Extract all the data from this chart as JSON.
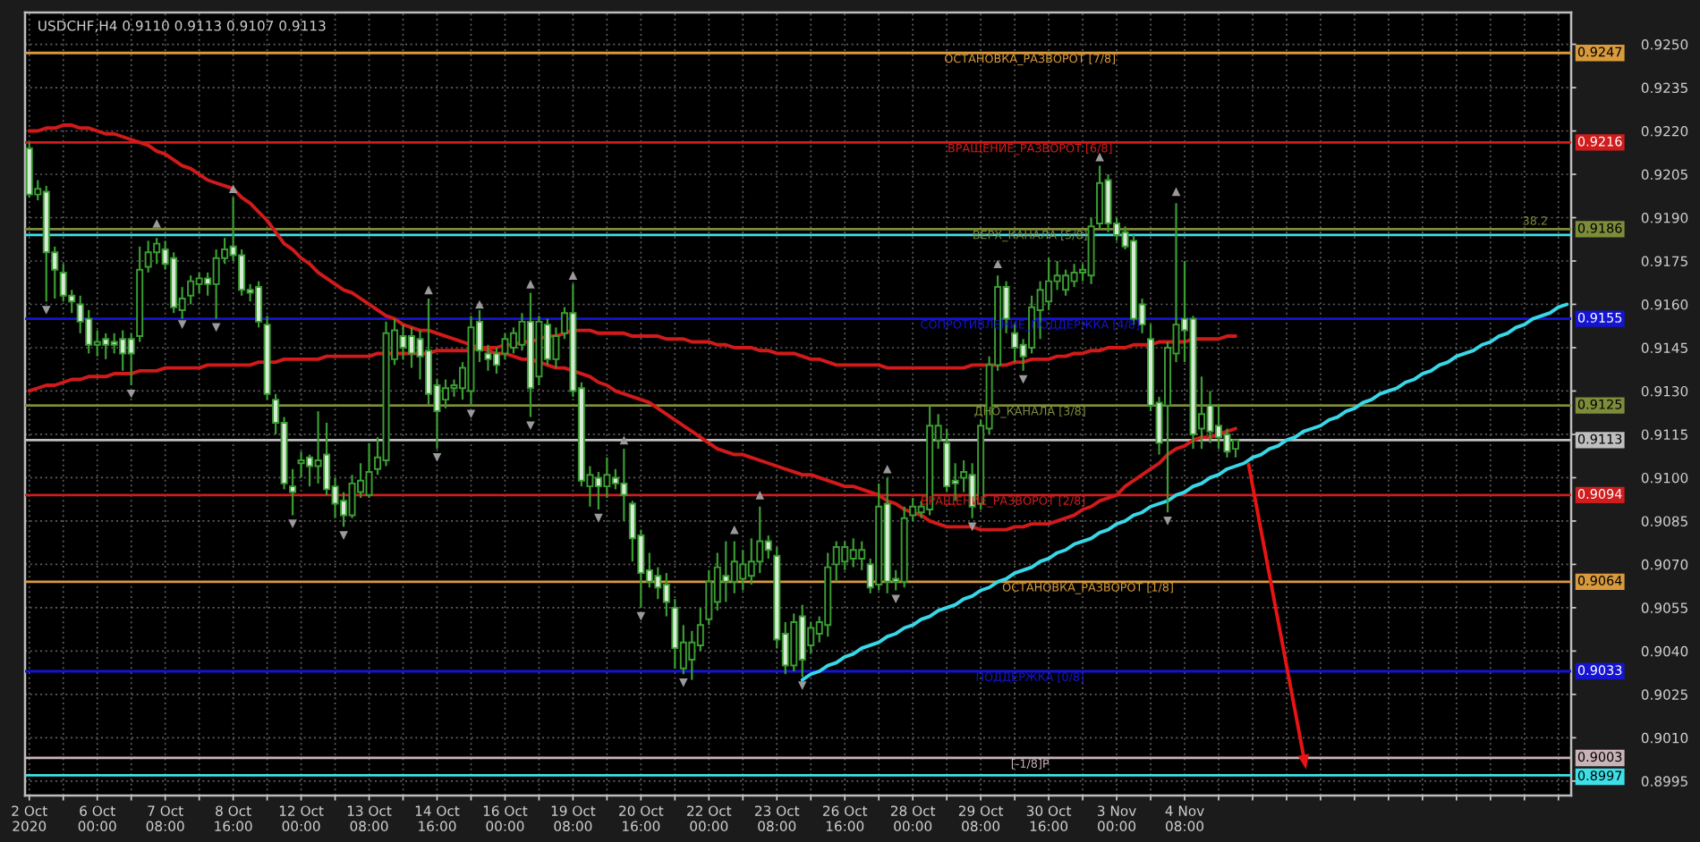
{
  "chart_data": {
    "type": "candlestick",
    "title": "USDCHF,H4 0.9110 0.9113 0.9107 0.9113",
    "color": "#3a9c32",
    "categories": [
      "2 Oct 2020",
      null,
      null,
      null,
      null,
      null,
      null,
      null,
      "6 Oct 00:00",
      null,
      null,
      null,
      null,
      null,
      null,
      null,
      "7 Oct 08:00",
      null,
      null,
      null,
      null,
      null,
      null,
      null,
      "8 Oct 16:00",
      null,
      null,
      null,
      null,
      null,
      null,
      null,
      "12 Oct 00:00",
      null,
      null,
      null,
      null,
      null,
      null,
      null,
      "13 Oct 08:00",
      null,
      null,
      null,
      null,
      null,
      null,
      null,
      "14 Oct 16:00",
      null,
      null,
      null,
      null,
      null,
      null,
      null,
      "16 Oct 00:00",
      null,
      null,
      null,
      null,
      null,
      null,
      null,
      "19 Oct 08:00",
      null,
      null,
      null,
      null,
      null,
      null,
      null,
      "20 Oct 16:00",
      null,
      null,
      null,
      null,
      null,
      null,
      null,
      "22 Oct 00:00",
      null,
      null,
      null,
      null,
      null,
      null,
      null,
      "23 Oct 08:00",
      null,
      null,
      null,
      null,
      null,
      null,
      null,
      "26 Oct 16:00",
      null,
      null,
      null,
      null,
      null,
      null,
      null,
      "28 Oct 00:00",
      null,
      null,
      null,
      null,
      null,
      null,
      null,
      "29 Oct 08:00",
      null,
      null,
      null,
      null,
      null,
      null,
      null,
      "30 Oct 16:00",
      null,
      null,
      null,
      null,
      null,
      null,
      null,
      "3 Nov 00:00",
      null,
      null,
      null,
      null,
      null,
      null,
      null,
      "4 Nov 08:00",
      null,
      null,
      null,
      null,
      null,
      null,
      null,
      null,
      null,
      null,
      null,
      null,
      null,
      null,
      null,
      null,
      null,
      null,
      null,
      null,
      null,
      null,
      null,
      null,
      null,
      null,
      null,
      null,
      null,
      null,
      null,
      null,
      null,
      null,
      null,
      null,
      null,
      null,
      null,
      null,
      null,
      null,
      null,
      null,
      null
    ],
    "ohlc": [
      [
        0.9214,
        0.9216,
        0.9197,
        0.9198
      ],
      [
        0.9198,
        0.9203,
        0.9196,
        0.92
      ],
      [
        0.9199,
        0.9201,
        0.9161,
        0.9178
      ],
      [
        0.9178,
        0.918,
        0.9162,
        0.9172
      ],
      [
        0.9171,
        0.9174,
        0.9161,
        0.9163
      ],
      [
        0.9163,
        0.9165,
        0.9157,
        0.9161
      ],
      [
        0.916,
        0.9163,
        0.915,
        0.9154
      ],
      [
        0.9155,
        0.9158,
        0.9143,
        0.9146
      ],
      [
        0.9146,
        0.9151,
        0.9142,
        0.9147
      ],
      [
        0.9148,
        0.915,
        0.9141,
        0.9146
      ],
      [
        0.9147,
        0.915,
        0.9143,
        0.9146
      ],
      [
        0.9148,
        0.9151,
        0.9137,
        0.9143
      ],
      [
        0.9148,
        0.915,
        0.9132,
        0.9143
      ],
      [
        0.9149,
        0.918,
        0.9147,
        0.9172
      ],
      [
        0.9173,
        0.9182,
        0.9171,
        0.9178
      ],
      [
        0.9178,
        0.9183,
        0.9174,
        0.9181
      ],
      [
        0.9179,
        0.9182,
        0.9172,
        0.9174
      ],
      [
        0.9176,
        0.9178,
        0.9157,
        0.9159
      ],
      [
        0.9158,
        0.9166,
        0.9155,
        0.9162
      ],
      [
        0.9163,
        0.917,
        0.916,
        0.9168
      ],
      [
        0.9167,
        0.9171,
        0.9164,
        0.9169
      ],
      [
        0.9169,
        0.9171,
        0.9163,
        0.9167
      ],
      [
        0.9167,
        0.9179,
        0.9155,
        0.9176
      ],
      [
        0.9176,
        0.9183,
        0.9174,
        0.9179
      ],
      [
        0.918,
        0.9197,
        0.9175,
        0.9177
      ],
      [
        0.9177,
        0.9179,
        0.9163,
        0.9165
      ],
      [
        0.9165,
        0.9167,
        0.9161,
        0.9164
      ],
      [
        0.9166,
        0.9168,
        0.9152,
        0.9154
      ],
      [
        0.9153,
        0.9156,
        0.9127,
        0.9129
      ],
      [
        0.9127,
        0.9129,
        0.9115,
        0.9119
      ],
      [
        0.9119,
        0.9121,
        0.9096,
        0.9098
      ],
      [
        0.9097,
        0.9103,
        0.9087,
        0.9095
      ],
      [
        0.9105,
        0.9109,
        0.91,
        0.9106
      ],
      [
        0.9107,
        0.9108,
        0.9097,
        0.9104
      ],
      [
        0.9104,
        0.9123,
        0.9098,
        0.9106
      ],
      [
        0.9108,
        0.9119,
        0.9094,
        0.9096
      ],
      [
        0.9097,
        0.91,
        0.9086,
        0.9091
      ],
      [
        0.9092,
        0.9095,
        0.9083,
        0.9087
      ],
      [
        0.9087,
        0.9101,
        0.9086,
        0.9098
      ],
      [
        0.9095,
        0.9105,
        0.9093,
        0.9099
      ],
      [
        0.9094,
        0.9112,
        0.9093,
        0.9102
      ],
      [
        0.9103,
        0.9114,
        0.9101,
        0.9107
      ],
      [
        0.9106,
        0.9154,
        0.9104,
        0.915
      ],
      [
        0.9141,
        0.9155,
        0.9139,
        0.9151
      ],
      [
        0.9149,
        0.9153,
        0.9141,
        0.9145
      ],
      [
        0.9149,
        0.9152,
        0.9138,
        0.9143
      ],
      [
        0.9148,
        0.9151,
        0.9134,
        0.9142
      ],
      [
        0.9144,
        0.9162,
        0.9125,
        0.9129
      ],
      [
        0.9132,
        0.9134,
        0.911,
        0.9123
      ],
      [
        0.9127,
        0.9134,
        0.9124,
        0.9131
      ],
      [
        0.9131,
        0.9134,
        0.9128,
        0.9132
      ],
      [
        0.9131,
        0.914,
        0.9127,
        0.9138
      ],
      [
        0.913,
        0.9156,
        0.9125,
        0.9152
      ],
      [
        0.9154,
        0.9158,
        0.914,
        0.9144
      ],
      [
        0.9143,
        0.9146,
        0.9137,
        0.9141
      ],
      [
        0.9143,
        0.9145,
        0.9136,
        0.9139
      ],
      [
        0.9143,
        0.915,
        0.9141,
        0.9148
      ],
      [
        0.9145,
        0.9152,
        0.9143,
        0.915
      ],
      [
        0.9146,
        0.9157,
        0.9144,
        0.9154
      ],
      [
        0.9154,
        0.9164,
        0.9121,
        0.9131
      ],
      [
        0.9135,
        0.9156,
        0.9132,
        0.9154
      ],
      [
        0.9153,
        0.9155,
        0.9139,
        0.9141
      ],
      [
        0.9141,
        0.9152,
        0.9138,
        0.9149
      ],
      [
        0.915,
        0.9159,
        0.9148,
        0.9157
      ],
      [
        0.9157,
        0.9167,
        0.9128,
        0.913
      ],
      [
        0.9131,
        0.9133,
        0.9097,
        0.9099
      ],
      [
        0.9097,
        0.9104,
        0.909,
        0.9101
      ],
      [
        0.91,
        0.9102,
        0.9089,
        0.9097
      ],
      [
        0.9097,
        0.9107,
        0.9093,
        0.9101
      ],
      [
        0.91,
        0.9103,
        0.9096,
        0.9098
      ],
      [
        0.9098,
        0.911,
        0.9085,
        0.9094
      ],
      [
        0.9091,
        0.9092,
        0.9071,
        0.9079
      ],
      [
        0.908,
        0.9082,
        0.9055,
        0.9067
      ],
      [
        0.9068,
        0.9074,
        0.9062,
        0.9064
      ],
      [
        0.9066,
        0.9069,
        0.9058,
        0.9062
      ],
      [
        0.9063,
        0.9067,
        0.9052,
        0.9057
      ],
      [
        0.9055,
        0.9058,
        0.9034,
        0.9041
      ],
      [
        0.9034,
        0.9049,
        0.9032,
        0.9043
      ],
      [
        0.9037,
        0.9047,
        0.903,
        0.9043
      ],
      [
        0.9042,
        0.9055,
        0.904,
        0.9049
      ],
      [
        0.9051,
        0.9068,
        0.9049,
        0.9064
      ],
      [
        0.9057,
        0.9074,
        0.9054,
        0.9069
      ],
      [
        0.9066,
        0.9078,
        0.9057,
        0.9064
      ],
      [
        0.9064,
        0.9078,
        0.906,
        0.9071
      ],
      [
        0.9065,
        0.9075,
        0.9061,
        0.907
      ],
      [
        0.9066,
        0.9079,
        0.9063,
        0.9071
      ],
      [
        0.9071,
        0.909,
        0.9067,
        0.9078
      ],
      [
        0.9078,
        0.908,
        0.9072,
        0.9075
      ],
      [
        0.9073,
        0.9076,
        0.9041,
        0.9044
      ],
      [
        0.9046,
        0.905,
        0.9032,
        0.9035
      ],
      [
        0.9035,
        0.9053,
        0.9033,
        0.905
      ],
      [
        0.9052,
        0.9056,
        0.9031,
        0.9037
      ],
      [
        0.9042,
        0.905,
        0.9039,
        0.9048
      ],
      [
        0.9046,
        0.9052,
        0.9043,
        0.905
      ],
      [
        0.9049,
        0.9074,
        0.9045,
        0.9069
      ],
      [
        0.907,
        0.9078,
        0.9064,
        0.9076
      ],
      [
        0.9071,
        0.9078,
        0.9068,
        0.9076
      ],
      [
        0.9072,
        0.9079,
        0.9069,
        0.9075
      ],
      [
        0.9072,
        0.9078,
        0.9068,
        0.9075
      ],
      [
        0.907,
        0.9072,
        0.906,
        0.9062
      ],
      [
        0.9063,
        0.9098,
        0.9061,
        0.909
      ],
      [
        0.9091,
        0.91,
        0.906,
        0.9064
      ],
      [
        0.9065,
        0.9068,
        0.9061,
        0.9064
      ],
      [
        0.9064,
        0.909,
        0.9062,
        0.9086
      ],
      [
        0.9087,
        0.9093,
        0.9085,
        0.909
      ],
      [
        0.9088,
        0.9092,
        0.9086,
        0.909
      ],
      [
        0.9089,
        0.9125,
        0.9087,
        0.9118
      ],
      [
        0.9113,
        0.9122,
        0.911,
        0.9118
      ],
      [
        0.9112,
        0.9117,
        0.9095,
        0.9097
      ],
      [
        0.9099,
        0.9105,
        0.9092,
        0.9098
      ],
      [
        0.91,
        0.9106,
        0.9095,
        0.9102
      ],
      [
        0.9101,
        0.9105,
        0.9086,
        0.909
      ],
      [
        0.9091,
        0.912,
        0.9089,
        0.9118
      ],
      [
        0.9117,
        0.9142,
        0.9115,
        0.9139
      ],
      [
        0.9139,
        0.917,
        0.9137,
        0.9166
      ],
      [
        0.9166,
        0.9168,
        0.915,
        0.9155
      ],
      [
        0.915,
        0.9153,
        0.914,
        0.9145
      ],
      [
        0.9146,
        0.9148,
        0.9137,
        0.9142
      ],
      [
        0.9145,
        0.9163,
        0.9143,
        0.9159
      ],
      [
        0.9158,
        0.9168,
        0.9148,
        0.9165
      ],
      [
        0.9161,
        0.9176,
        0.9158,
        0.9168
      ],
      [
        0.9168,
        0.9175,
        0.9165,
        0.917
      ],
      [
        0.9165,
        0.9172,
        0.9163,
        0.917
      ],
      [
        0.9168,
        0.9174,
        0.9166,
        0.9171
      ],
      [
        0.9171,
        0.9174,
        0.9168,
        0.9172
      ],
      [
        0.917,
        0.919,
        0.9167,
        0.9187
      ],
      [
        0.9188,
        0.9208,
        0.9186,
        0.9202
      ],
      [
        0.9203,
        0.9205,
        0.9185,
        0.9188
      ],
      [
        0.9188,
        0.919,
        0.9182,
        0.9184
      ],
      [
        0.9185,
        0.9187,
        0.9179,
        0.918
      ],
      [
        0.9182,
        0.9184,
        0.9153,
        0.9155
      ],
      [
        0.916,
        0.9162,
        0.915,
        0.9153
      ],
      [
        0.9148,
        0.9153,
        0.9123,
        0.9125
      ],
      [
        0.9126,
        0.9128,
        0.9108,
        0.9112
      ],
      [
        0.9125,
        0.9147,
        0.9088,
        0.9145
      ],
      [
        0.9143,
        0.9195,
        0.914,
        0.9153
      ],
      [
        0.9155,
        0.9175,
        0.914,
        0.9151
      ],
      [
        0.9155,
        0.9156,
        0.911,
        0.9115
      ],
      [
        0.9117,
        0.9135,
        0.911,
        0.9122
      ],
      [
        0.9125,
        0.913,
        0.9112,
        0.9116
      ],
      [
        0.9118,
        0.9125,
        0.911,
        0.9114
      ],
      [
        0.9115,
        0.9117,
        0.9107,
        0.9109
      ],
      [
        0.911,
        0.9113,
        0.9107,
        0.9113
      ],
      null,
      null,
      null,
      null,
      null,
      null,
      null,
      null,
      null,
      null,
      null,
      null,
      null,
      null,
      null,
      null,
      null,
      null,
      null,
      null,
      null,
      null,
      null,
      null,
      null,
      null,
      null,
      null,
      null,
      null,
      null,
      null,
      null,
      null,
      null,
      null,
      null,
      null,
      null
    ],
    "series": [
      {
        "type": "line",
        "color": "#d21a1a",
        "values": [
          0.922,
          0.922,
          0.9221,
          0.9221,
          0.9222,
          0.9222,
          0.9221,
          0.9221,
          0.922,
          0.9219,
          0.9219,
          0.9218,
          0.9217,
          0.9216,
          0.9215,
          0.9213,
          0.9212,
          0.921,
          0.9208,
          0.9207,
          0.9205,
          0.9203,
          0.9202,
          0.9201,
          0.92,
          0.9197,
          0.9195,
          0.9192,
          0.9189,
          0.9185,
          0.9181,
          0.9179,
          0.9176,
          0.9174,
          0.9171,
          0.9169,
          0.9167,
          0.9165,
          0.9164,
          0.9162,
          0.916,
          0.9158,
          0.9156,
          0.9155,
          0.9153,
          0.9152,
          0.9151,
          0.9151,
          0.915,
          0.9149,
          0.9148,
          0.9147,
          0.9146,
          0.9145,
          0.9144,
          0.9143,
          0.9143,
          0.9142,
          0.9141,
          0.9141,
          0.914,
          0.9139,
          0.9138,
          0.9138,
          0.9137,
          0.9136,
          0.9135,
          0.9133,
          0.9132,
          0.913,
          0.9129,
          0.9128,
          0.9127,
          0.9126,
          0.9124,
          0.9122,
          0.912,
          0.9118,
          0.9116,
          0.9114,
          0.9112,
          0.911,
          0.9109,
          0.9108,
          0.9108,
          0.9107,
          0.9106,
          0.9105,
          0.9104,
          0.9103,
          0.9102,
          0.9101,
          0.9101,
          0.91,
          0.9099,
          0.9098,
          0.9097,
          0.9097,
          0.9096,
          0.9095,
          0.9094,
          0.9092,
          0.9091,
          0.9089,
          0.9088,
          0.9087,
          0.9085,
          0.9084,
          0.9083,
          0.9083,
          0.9083,
          0.9083,
          0.9082,
          0.9082,
          0.9082,
          0.9082,
          0.9083,
          0.9083,
          0.9084,
          0.9084,
          0.9084,
          0.9085,
          0.9086,
          0.9087,
          0.9089,
          0.909,
          0.9092,
          0.9093,
          0.9094,
          0.9097,
          0.9099,
          0.9101,
          0.9103,
          0.9105,
          0.9108,
          0.911,
          0.9111,
          0.9113,
          0.9114,
          0.9114,
          0.9115,
          0.9116,
          0.9117,
          null,
          null,
          null,
          null,
          null,
          null,
          null,
          null,
          null,
          null,
          null,
          null,
          null,
          null,
          null,
          null,
          null,
          null,
          null,
          null,
          null,
          null,
          null,
          null,
          null,
          null,
          null,
          null,
          null,
          null,
          null,
          null,
          null,
          null,
          null,
          null,
          null,
          null,
          null
        ]
      },
      {
        "type": "line",
        "color": "#d21a1a",
        "values": [
          0.913,
          0.9131,
          0.9132,
          0.9132,
          0.9133,
          0.9134,
          0.9134,
          0.9135,
          0.9135,
          0.9135,
          0.9136,
          0.9136,
          0.9136,
          0.9137,
          0.9137,
          0.9137,
          0.9138,
          0.9138,
          0.9138,
          0.9138,
          0.9138,
          0.9139,
          0.9139,
          0.9139,
          0.9139,
          0.9139,
          0.9139,
          0.914,
          0.914,
          0.914,
          0.9141,
          0.9141,
          0.9141,
          0.9141,
          0.9141,
          0.9142,
          0.9142,
          0.9142,
          0.9142,
          0.9142,
          0.9142,
          0.9143,
          0.9143,
          0.9143,
          0.9143,
          0.9143,
          0.9143,
          0.9143,
          0.9144,
          0.9144,
          0.9144,
          0.9144,
          0.9144,
          0.9145,
          0.9145,
          0.9145,
          0.9146,
          0.9146,
          0.9147,
          0.9147,
          0.9148,
          0.9149,
          0.9149,
          0.915,
          0.9151,
          0.9151,
          0.9151,
          0.915,
          0.915,
          0.915,
          0.915,
          0.9149,
          0.9149,
          0.9149,
          0.9149,
          0.9148,
          0.9148,
          0.9148,
          0.9147,
          0.9147,
          0.9147,
          0.9146,
          0.9146,
          0.9145,
          0.9145,
          0.9145,
          0.9144,
          0.9144,
          0.9143,
          0.9143,
          0.9143,
          0.9142,
          0.9141,
          0.9141,
          0.914,
          0.9139,
          0.9139,
          0.9139,
          0.9139,
          0.9139,
          0.9139,
          0.9138,
          0.9138,
          0.9138,
          0.9138,
          0.9138,
          0.9138,
          0.9138,
          0.9138,
          0.9138,
          0.9138,
          0.9139,
          0.9139,
          0.9139,
          0.9139,
          0.9139,
          0.914,
          0.914,
          0.9141,
          0.9141,
          0.9141,
          0.9142,
          0.9142,
          0.9143,
          0.9143,
          0.9144,
          0.9144,
          0.9145,
          0.9145,
          0.9145,
          0.9146,
          0.9146,
          0.9146,
          0.9147,
          0.9147,
          0.9147,
          0.9147,
          0.9148,
          0.9148,
          0.9148,
          0.9148,
          0.9149,
          0.9149,
          null,
          null,
          null,
          null,
          null,
          null,
          null,
          null,
          null,
          null,
          null,
          null,
          null,
          null,
          null,
          null,
          null,
          null,
          null,
          null,
          null,
          null,
          null,
          null,
          null,
          null,
          null,
          null,
          null,
          null,
          null,
          null,
          null,
          null,
          null,
          null,
          null,
          null,
          null
        ]
      },
      {
        "type": "line",
        "color": "#38d8e8",
        "values": [
          null,
          null,
          null,
          null,
          null,
          null,
          null,
          null,
          null,
          null,
          null,
          null,
          null,
          null,
          null,
          null,
          null,
          null,
          null,
          null,
          null,
          null,
          null,
          null,
          null,
          null,
          null,
          null,
          null,
          null,
          null,
          null,
          null,
          null,
          null,
          null,
          null,
          null,
          null,
          null,
          null,
          null,
          null,
          null,
          null,
          null,
          null,
          null,
          null,
          null,
          null,
          null,
          null,
          null,
          null,
          null,
          null,
          null,
          null,
          null,
          null,
          null,
          null,
          null,
          null,
          null,
          null,
          null,
          null,
          null,
          null,
          null,
          null,
          null,
          null,
          null,
          null,
          null,
          null,
          null,
          null,
          null,
          null,
          null,
          null,
          null,
          null,
          null,
          null,
          null,
          null,
          0.903,
          0.9032,
          0.9033,
          0.9035,
          0.9036,
          0.9038,
          0.9039,
          0.9041,
          0.9042,
          0.9043,
          0.9045,
          0.9046,
          0.9048,
          0.9049,
          0.9051,
          0.9052,
          0.9054,
          0.9055,
          0.9056,
          0.9058,
          0.9059,
          0.9061,
          0.9062,
          0.9064,
          0.9065,
          0.9067,
          0.9068,
          0.9069,
          0.9071,
          0.9072,
          0.9074,
          0.9075,
          0.9077,
          0.9078,
          0.9079,
          0.9081,
          0.9082,
          0.9084,
          0.9085,
          0.9087,
          0.9088,
          0.909,
          0.9091,
          0.9092,
          0.9094,
          0.9095,
          0.9097,
          0.9098,
          0.91,
          0.9101,
          0.9103,
          0.9104,
          0.9105,
          0.9107,
          0.9108,
          0.911,
          0.9111,
          0.9113,
          0.9114,
          0.9116,
          0.9117,
          0.9118,
          0.912,
          0.9121,
          0.9123,
          0.9124,
          0.9126,
          0.9127,
          0.9129,
          0.913,
          0.9131,
          0.9133,
          0.9134,
          0.9136,
          0.9137,
          0.9139,
          0.914,
          0.9142,
          0.9143,
          0.9144,
          0.9146,
          0.9147,
          0.9149,
          0.915,
          0.9152,
          0.9153,
          0.9155,
          0.9156,
          0.9157,
          0.9159,
          0.916
        ]
      },
      {
        "type": "scatter",
        "color": "#9a9a9a",
        "marker": "triangle",
        "values": [
          null,
          null,
          null,
          null,
          null,
          null,
          null,
          null,
          null,
          null,
          null,
          null,
          null,
          null,
          null,
          0.9188,
          null,
          null,
          null,
          null,
          null,
          null,
          null,
          null,
          0.92,
          null,
          null,
          null,
          null,
          null,
          null,
          null,
          null,
          null,
          null,
          null,
          null,
          null,
          null,
          null,
          null,
          null,
          null,
          null,
          null,
          null,
          null,
          0.9165,
          null,
          null,
          null,
          null,
          null,
          0.916,
          null,
          null,
          null,
          null,
          null,
          0.9167,
          null,
          null,
          null,
          null,
          0.917,
          null,
          null,
          null,
          null,
          null,
          0.9113,
          null,
          null,
          null,
          null,
          null,
          null,
          null,
          null,
          null,
          null,
          null,
          null,
          0.9082,
          null,
          null,
          0.9094,
          null,
          null,
          null,
          null,
          null,
          null,
          null,
          null,
          null,
          null,
          null,
          null,
          null,
          null,
          0.9103,
          null,
          null,
          null,
          null,
          null,
          null,
          null,
          null,
          null,
          null,
          null,
          null,
          0.9174,
          null,
          null,
          null,
          null,
          null,
          null,
          null,
          null,
          null,
          null,
          null,
          0.9211,
          null,
          null,
          null,
          null,
          null,
          null,
          null,
          null,
          0.9199,
          null,
          null,
          null,
          null,
          null,
          null,
          null,
          null,
          null,
          null,
          null,
          null,
          null,
          null,
          null,
          null,
          null,
          null,
          null,
          null,
          null,
          null,
          null,
          null,
          null,
          null,
          null,
          null,
          null,
          null,
          null,
          null,
          null,
          null,
          null,
          null,
          null,
          null,
          null,
          null,
          null,
          null,
          null,
          null,
          null,
          null
        ]
      },
      {
        "type": "scatter",
        "color": "#9a9a9a",
        "marker": "triangle",
        "values": [
          null,
          null,
          0.9158,
          null,
          null,
          null,
          null,
          null,
          null,
          null,
          null,
          null,
          0.9129,
          null,
          null,
          null,
          null,
          null,
          0.9153,
          null,
          null,
          null,
          0.9152,
          null,
          null,
          null,
          null,
          null,
          null,
          null,
          null,
          0.9084,
          null,
          null,
          null,
          null,
          null,
          0.908,
          null,
          null,
          null,
          null,
          null,
          null,
          null,
          null,
          null,
          null,
          0.9107,
          null,
          null,
          null,
          0.9122,
          null,
          null,
          null,
          null,
          null,
          null,
          0.9118,
          null,
          null,
          null,
          null,
          null,
          null,
          null,
          0.9086,
          null,
          null,
          null,
          null,
          0.9052,
          null,
          null,
          null,
          null,
          0.9029,
          null,
          null,
          null,
          null,
          null,
          null,
          null,
          null,
          null,
          null,
          null,
          null,
          null,
          0.9028,
          null,
          null,
          null,
          null,
          null,
          null,
          null,
          null,
          null,
          null,
          0.9058,
          null,
          null,
          null,
          null,
          null,
          null,
          null,
          null,
          0.9083,
          null,
          null,
          null,
          null,
          null,
          0.9134,
          null,
          null,
          null,
          null,
          null,
          null,
          null,
          null,
          null,
          null,
          null,
          null,
          null,
          null,
          null,
          null,
          0.9085,
          null,
          null,
          null,
          null,
          null,
          null,
          null,
          null,
          null,
          null,
          null,
          null,
          null,
          null,
          null,
          null,
          null,
          null,
          null,
          null,
          null,
          null,
          null,
          null,
          null,
          null,
          null,
          null,
          null,
          null,
          null,
          null,
          null,
          null,
          null,
          null,
          null,
          null,
          null,
          null,
          null,
          null,
          null,
          null,
          null,
          null,
          null
        ]
      }
    ],
    "ref_lines": [
      {
        "axis": "y",
        "value": 0.9247,
        "label": "0.9247",
        "color": "#d89a3c"
      },
      {
        "axis": "y",
        "value": 0.9216,
        "label": "0.9216",
        "color": "#d01c1c"
      },
      {
        "axis": "y",
        "value": 0.9186,
        "label": "0.9186",
        "color": "#7d8c3a"
      },
      {
        "axis": "y",
        "value": 0.9184,
        "color": "#3ee0e8"
      },
      {
        "axis": "y",
        "value": 0.9155,
        "label": "0.9155",
        "color": "#1414d2"
      },
      {
        "axis": "y",
        "value": 0.9125,
        "label": "0.9125",
        "color": "#7d8c3a"
      },
      {
        "axis": "y",
        "value": 0.9113,
        "label": "0.9113",
        "color": "#c0c0c0"
      },
      {
        "axis": "y",
        "value": 0.9094,
        "label": "0.9094",
        "color": "#d01c1c"
      },
      {
        "axis": "y",
        "value": 0.9064,
        "label": "0.9064",
        "color": "#d89a3c"
      },
      {
        "axis": "y",
        "value": 0.9033,
        "label": "0.9033",
        "color": "#1414d2"
      },
      {
        "axis": "y",
        "value": 0.9003,
        "label": "0.9003",
        "color": "#c8b4b8"
      },
      {
        "axis": "y",
        "value": 0.8997,
        "label": "0.8997",
        "color": "#3ee0e8"
      }
    ],
    "annotations": [
      {
        "text": "ОСТАНОВКА_РАЗВОРОТ [7/8]",
        "y": 0.9247
      },
      {
        "text": "ВРАЩЕНИЕ_РАЗВОРОТ [6/8]",
        "y": 0.9216
      },
      {
        "text": "ВЕРХ_КАНАЛА [5/8]",
        "y": 0.9186
      },
      {
        "text": "38.2",
        "y": 0.9186
      },
      {
        "text": "СОПРОТИВЛЕНИЕ_ПОДДЕРЖКА [4/8]",
        "y": 0.9155
      },
      {
        "text": "ДНО_КАНАЛА [3/8]",
        "y": 0.9125
      },
      {
        "text": "ВРАЩЕНИЕ_РАЗВОРОТ [2/8]",
        "y": 0.9094
      },
      {
        "text": "ОСТАНОВКА_РАЗВОРОТ [1/8]",
        "y": 0.9064
      },
      {
        "text": "ПОДДЕРЖКА [0/8]",
        "y": 0.9033
      },
      {
        "text": "[-1/8]P",
        "y": 0.9003
      }
    ],
    "ylim": [
      0.899,
      0.9261
    ],
    "yticks": [
      0.8995,
      {
        "value": 0.901,
        "label": "0.9010"
      },
      0.9025,
      {
        "value": 0.904,
        "label": "0.9040"
      },
      0.9055,
      {
        "value": 0.907,
        "label": "0.9070"
      },
      0.9085,
      {
        "value": 0.91,
        "label": "0.9100"
      },
      0.9115,
      {
        "value": 0.913,
        "label": "0.9130"
      },
      0.9145,
      {
        "value": 0.916,
        "label": "0.9160"
      },
      0.9175,
      {
        "value": 0.919,
        "label": "0.9190"
      },
      0.9205,
      {
        "value": 0.922,
        "label": "0.9220"
      },
      0.9235,
      {
        "value": 0.925,
        "label": "0.9250"
      }
    ],
    "grid": true
  }
}
